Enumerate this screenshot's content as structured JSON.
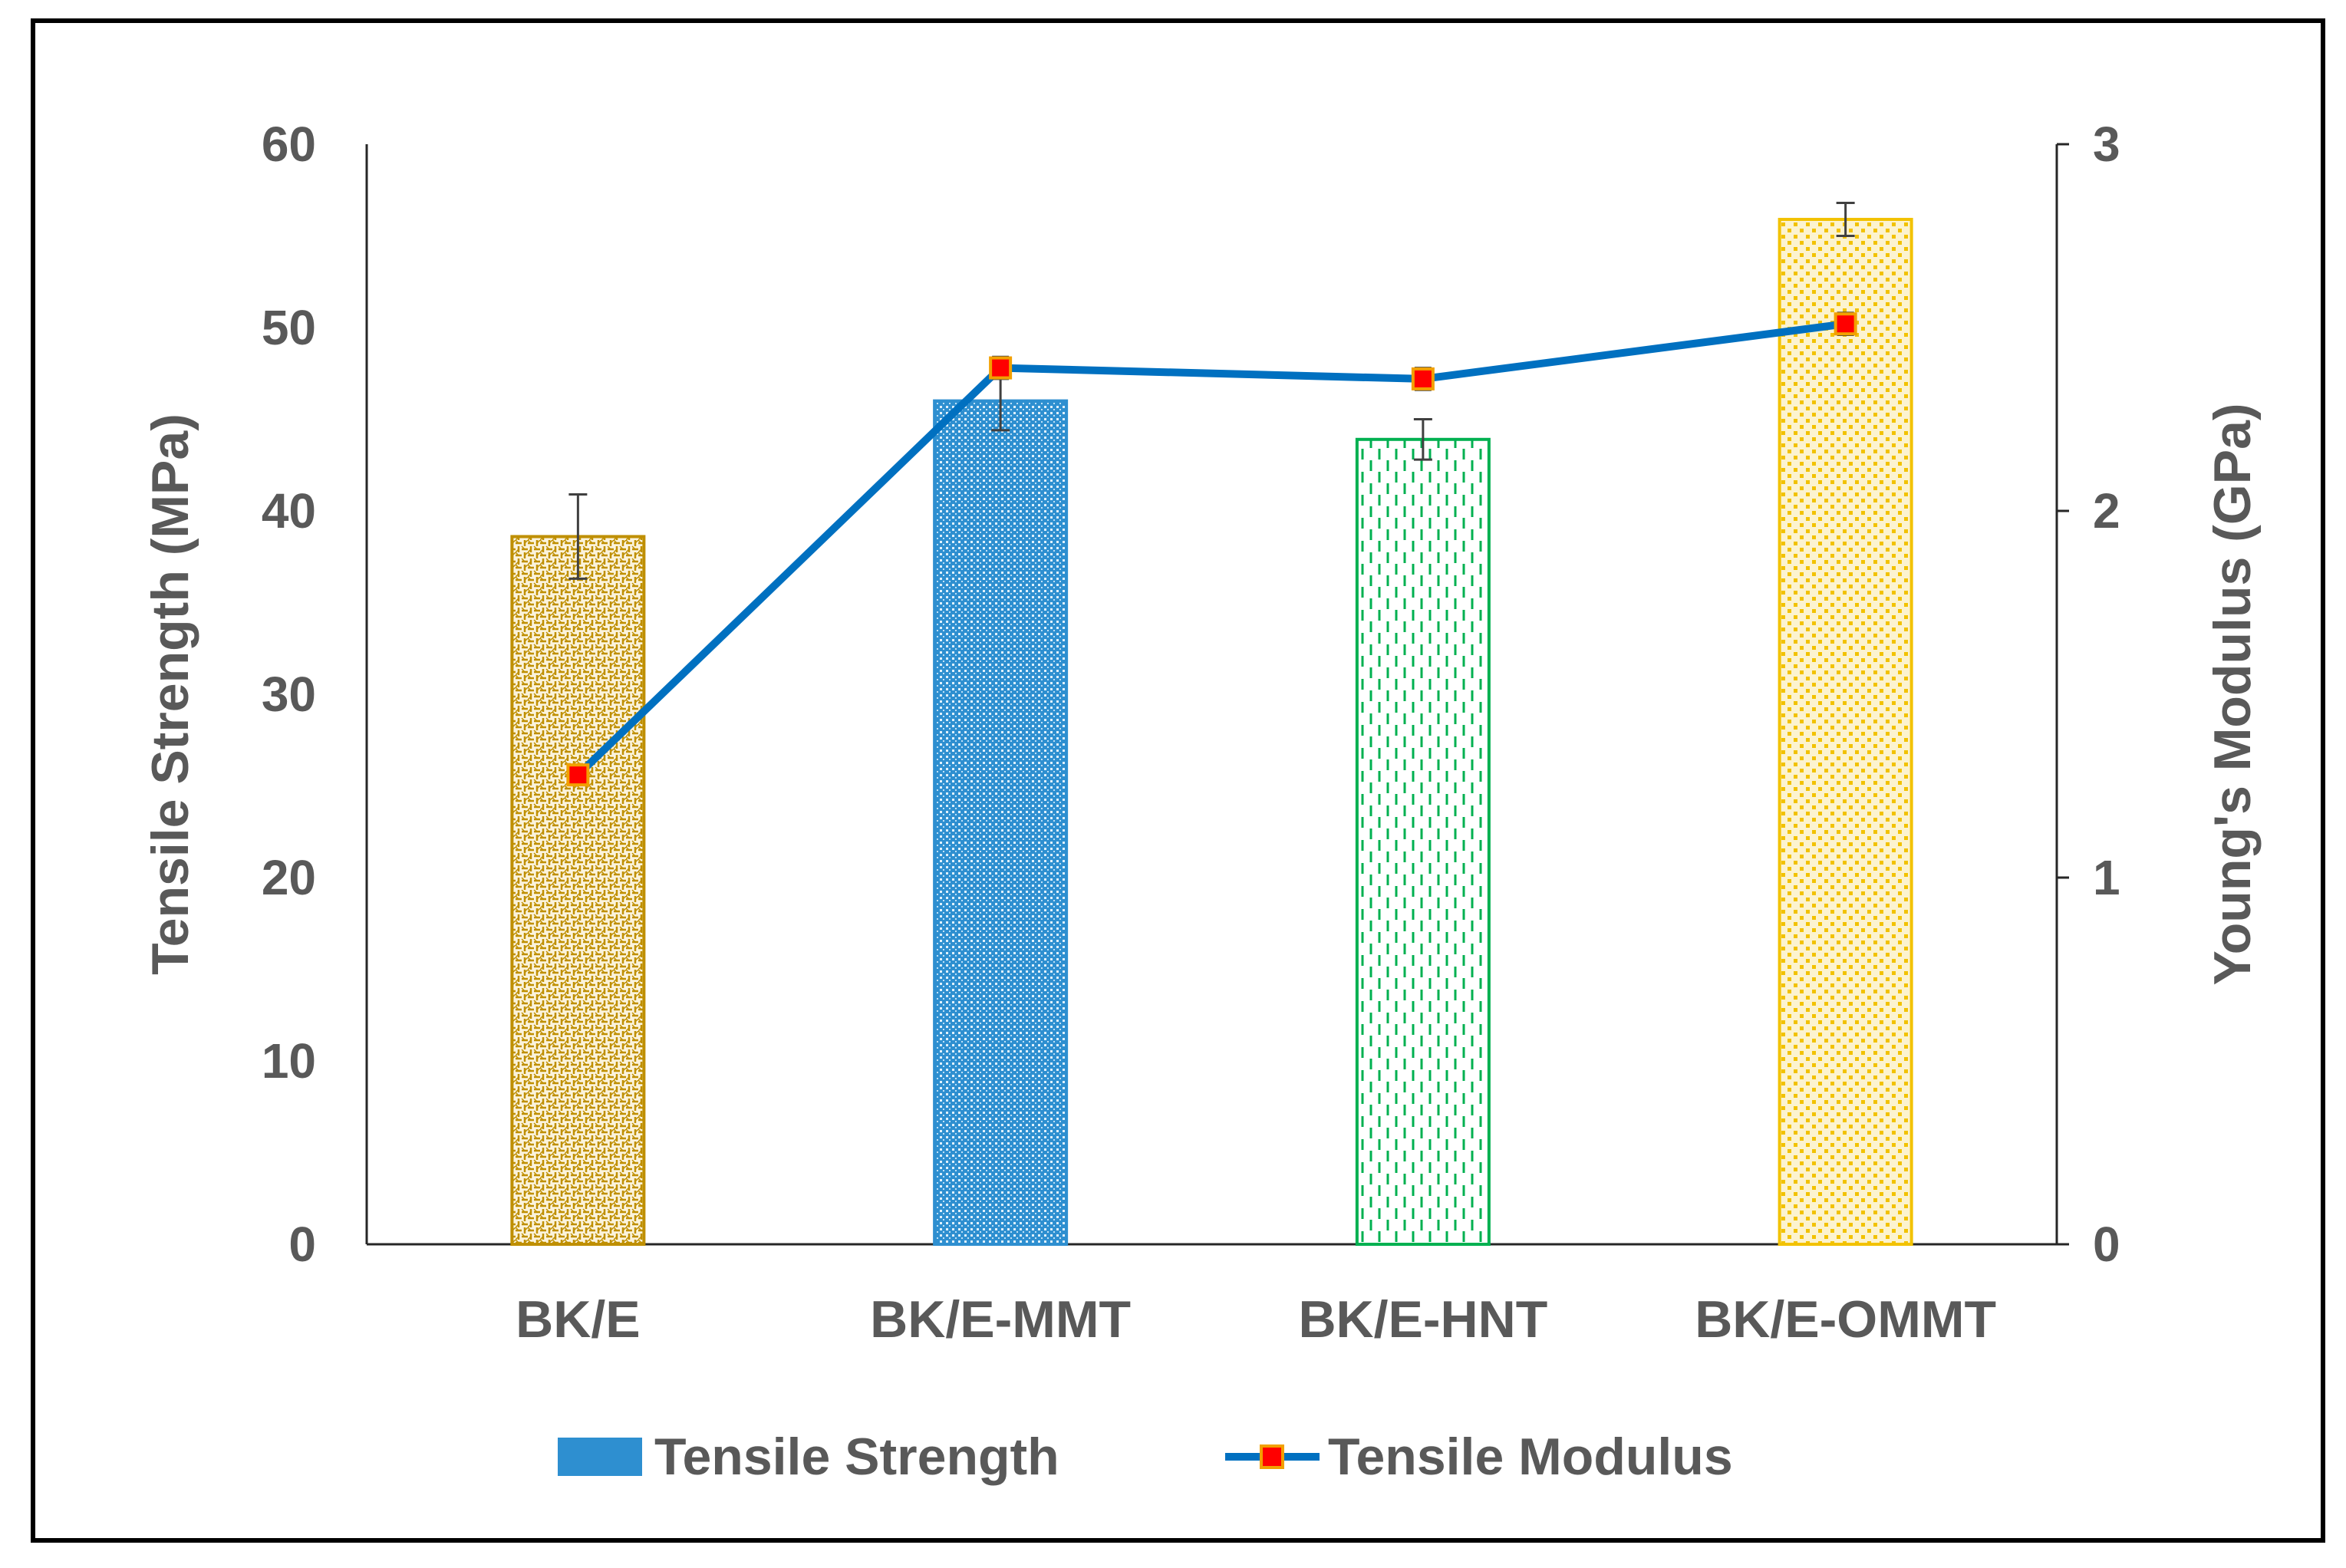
{
  "chart_data": {
    "type": "bar",
    "title": "",
    "categories": [
      "BK/E",
      "BK/E-MMT",
      "BK/E-HNT",
      "BK/E-OMMT"
    ],
    "series": [
      {
        "name": "Tensile Strength",
        "type": "bar",
        "axis": "left",
        "values": [
          38.6,
          46.0,
          43.9,
          55.9
        ],
        "errors": [
          2.3,
          1.6,
          1.1,
          0.9
        ],
        "colors": [
          "#BF8F00",
          "#2E8FD0",
          "#00B050",
          "#F2C200"
        ],
        "patterns": [
          "weave",
          "dots-fine",
          "dashes-vertical",
          "dots-coarse"
        ]
      },
      {
        "name": "Tensile Modulus",
        "type": "line",
        "axis": "right",
        "values": [
          1.28,
          2.39,
          2.36,
          2.51
        ],
        "errors": [
          0.0,
          0.03,
          0.03,
          0.03
        ],
        "line_color": "#0070C0",
        "marker_color": "#FF0000",
        "marker_border": "#F2A000"
      }
    ],
    "ylabel": "Tensile Strength (MPa)",
    "ylim": [
      0,
      60
    ],
    "yticks": [
      "0",
      "10",
      "20",
      "30",
      "40",
      "50",
      "60"
    ],
    "y2label": "Young's Modulus (GPa)",
    "y2lim": [
      0,
      3
    ],
    "y2ticks": [
      "0",
      "1",
      "2",
      "3"
    ],
    "legend": {
      "position": "bottom",
      "items": [
        {
          "label": "Tensile Strength",
          "swatch_color": "#2E8FD0"
        },
        {
          "label": "Tensile Modulus",
          "line_color": "#0070C0",
          "marker_color": "#FF0000"
        }
      ]
    }
  }
}
